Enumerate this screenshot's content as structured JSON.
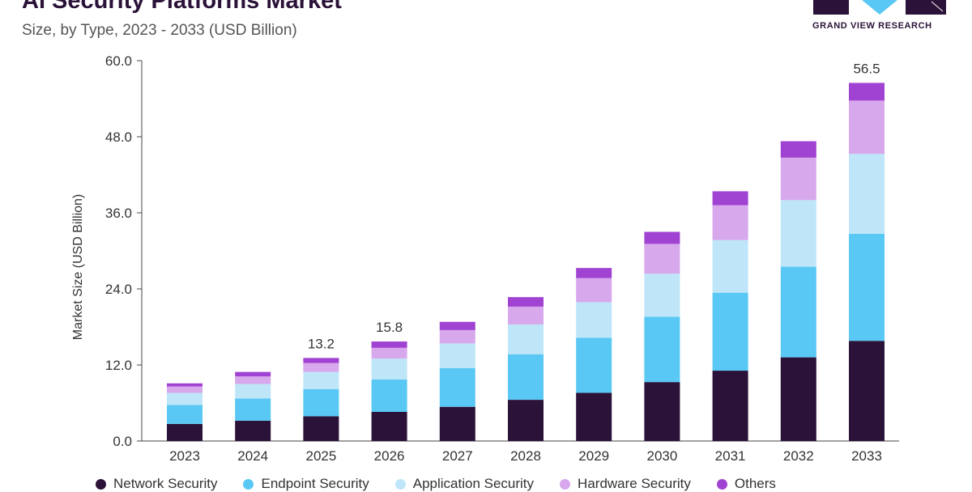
{
  "header": {
    "title": "AI Security Platforms Market",
    "subtitle": "Size, by Type, 2023 - 2033 (USD Billion)",
    "logo_text": "GRAND VIEW RESEARCH"
  },
  "colors": {
    "network": "#2b1238",
    "endpoint": "#5ac8f4",
    "application": "#bfe6f8",
    "hardware": "#d7a8ec",
    "others": "#a143d2",
    "axis": "#444444",
    "text": "#333333"
  },
  "chart_data": {
    "type": "bar",
    "stacked": true,
    "title": "AI Security Platforms Market",
    "subtitle": "Size, by Type, 2023 - 2033 (USD Billion)",
    "xlabel": "",
    "ylabel": "Market Size (USD Billion)",
    "ylim": [
      0,
      60
    ],
    "yticks": [
      "0.0",
      "12.0",
      "24.0",
      "36.0",
      "48.0",
      "60.0"
    ],
    "grid": false,
    "legend_position": "bottom",
    "categories": [
      "2023",
      "2024",
      "2025",
      "2026",
      "2027",
      "2028",
      "2029",
      "2030",
      "2031",
      "2032",
      "2033"
    ],
    "series": [
      {
        "name": "Network Security",
        "color": "#2b1238",
        "values": [
          2.7,
          3.2,
          3.9,
          4.6,
          5.4,
          6.5,
          7.6,
          9.3,
          11.1,
          13.2,
          15.8
        ]
      },
      {
        "name": "Endpoint Security",
        "color": "#5ac8f4",
        "values": [
          3.0,
          3.5,
          4.3,
          5.1,
          6.1,
          7.2,
          8.7,
          10.3,
          12.3,
          14.3,
          16.9
        ]
      },
      {
        "name": "Application Security",
        "color": "#bfe6f8",
        "values": [
          1.9,
          2.3,
          2.7,
          3.3,
          3.9,
          4.7,
          5.6,
          6.8,
          8.3,
          10.5,
          12.6
        ]
      },
      {
        "name": "Hardware Security",
        "color": "#d7a8ec",
        "values": [
          1.0,
          1.2,
          1.4,
          1.7,
          2.1,
          2.8,
          3.8,
          4.7,
          5.5,
          6.7,
          8.4
        ]
      },
      {
        "name": "Others",
        "color": "#a143d2",
        "values": [
          0.5,
          0.7,
          0.8,
          1.0,
          1.3,
          1.5,
          1.6,
          1.9,
          2.2,
          2.6,
          2.8
        ]
      }
    ],
    "annotations": [
      {
        "category": "2025",
        "label": "13.2"
      },
      {
        "category": "2026",
        "label": "15.8"
      },
      {
        "category": "2033",
        "label": "56.5"
      }
    ]
  }
}
